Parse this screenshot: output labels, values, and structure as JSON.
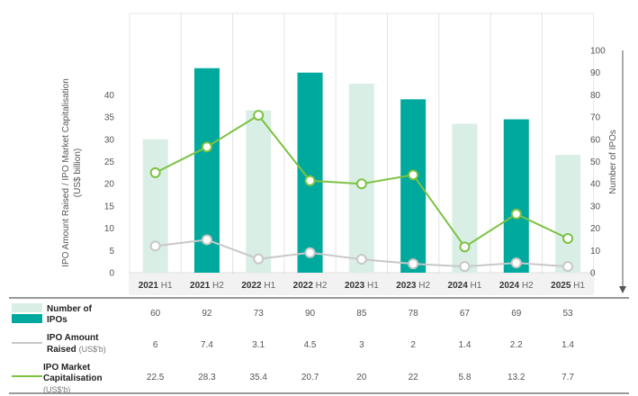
{
  "chart_data": {
    "type": "bar+line",
    "categories": [
      {
        "year": "2021",
        "half": "H1"
      },
      {
        "year": "2021",
        "half": "H2"
      },
      {
        "year": "2022",
        "half": "H1"
      },
      {
        "year": "2022",
        "half": "H2"
      },
      {
        "year": "2023",
        "half": "H1"
      },
      {
        "year": "2023",
        "half": "H2"
      },
      {
        "year": "2024",
        "half": "H1"
      },
      {
        "year": "2024",
        "half": "H2"
      },
      {
        "year": "2025",
        "half": "H1"
      }
    ],
    "left_axis": {
      "label_line1": "IPO Amount Raised / IPO Market Capitalisation",
      "label_line2": "(US$ billion)",
      "ylim": [
        0,
        50
      ],
      "ticks": [
        "0",
        "5",
        "10",
        "15",
        "20",
        "25",
        "30",
        "35",
        "40"
      ]
    },
    "right_axis": {
      "label": "Number of IPOs",
      "ylim": [
        0,
        100
      ],
      "ticks": [
        "0",
        "10",
        "20",
        "30",
        "40",
        "50",
        "60",
        "70",
        "80",
        "90",
        "100"
      ]
    },
    "grid": "vertical",
    "series": [
      {
        "name": "Number of IPOs",
        "type": "bar",
        "axis": "right",
        "values": [
          60,
          92,
          73,
          90,
          85,
          78,
          67,
          69,
          53
        ],
        "display": [
          "60",
          "92",
          "73",
          "90",
          "85",
          "78",
          "67",
          "69",
          "53"
        ],
        "colors": [
          "#d9efe6",
          "#00a99d"
        ]
      },
      {
        "name": "IPO Amount Raised",
        "unit": "(US$'b)",
        "type": "line",
        "axis": "left",
        "values": [
          6,
          7.4,
          3.1,
          4.5,
          3,
          2,
          1.4,
          2.2,
          1.4
        ],
        "display": [
          "6",
          "7.4",
          "3.1",
          "4.5",
          "3",
          "2",
          "1.4",
          "2.2",
          "1.4"
        ],
        "color": "#c8c8c8"
      },
      {
        "name": "IPO Market Capitalisation",
        "unit": "(US$'b)",
        "type": "line",
        "axis": "left",
        "values": [
          22.5,
          28.3,
          35.4,
          20.7,
          20,
          22,
          5.8,
          13.2,
          7.7
        ],
        "display": [
          "22.5",
          "28.3",
          "35.4",
          "20.7",
          "20",
          "22",
          "5.8",
          "13.2",
          "7.7"
        ],
        "color": "#7dc242"
      }
    ]
  },
  "legend": {
    "ipos_line1": "Number of",
    "ipos_line2": "IPOs",
    "amount_line1": "IPO Amount",
    "amount_line2": "Raised",
    "amount_unit": "(US$'b)",
    "mcap_line1": "IPO Market",
    "mcap_line2": "Capitalisation",
    "mcap_unit": "(US$'b)"
  }
}
